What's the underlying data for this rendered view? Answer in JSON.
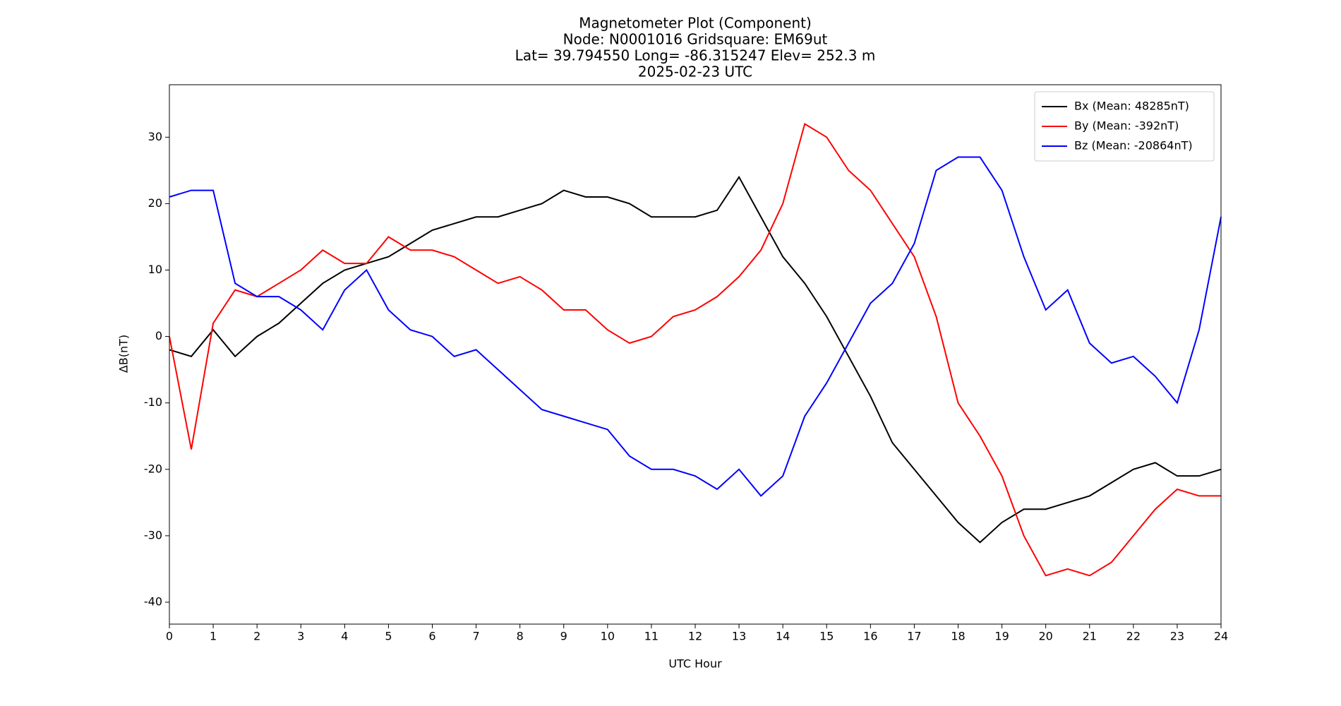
{
  "chart_data": {
    "type": "line",
    "title": [
      "Magnetometer Plot (Component)",
      "Node:  N0001016     Gridsquare:  EM69ut",
      "Lat= 39.794550    Long= -86.315247    Elev= 252.3 m",
      "2025-02-23  UTC"
    ],
    "xlabel": "UTC Hour",
    "ylabel": "ΔB(nT)",
    "x": [
      0,
      0.5,
      1,
      1.5,
      2,
      2.5,
      3,
      3.5,
      4,
      4.5,
      5,
      5.5,
      6,
      6.5,
      7,
      7.5,
      8,
      8.5,
      9,
      9.5,
      10,
      10.5,
      11,
      11.5,
      12,
      12.5,
      13,
      13.5,
      14,
      14.5,
      15,
      15.5,
      16,
      16.5,
      17,
      17.5,
      18,
      18.5,
      19,
      19.5,
      20,
      20.5,
      21,
      21.5,
      22,
      22.5,
      23,
      23.5,
      24
    ],
    "series": [
      {
        "name": "Bx (Mean: 48285nT)",
        "color": "#000000",
        "values": [
          -2,
          -3,
          1,
          -3,
          0,
          2,
          5,
          8,
          10,
          11,
          12,
          14,
          16,
          17,
          18,
          18,
          19,
          20,
          22,
          21,
          21,
          20,
          18,
          18,
          18,
          19,
          24,
          18,
          12,
          8,
          3,
          -3,
          -9,
          -16,
          -20,
          -24,
          -28,
          -31,
          -28,
          -26,
          -26,
          -25,
          -24,
          -22,
          -20,
          -19,
          -21,
          -21,
          -20
        ]
      },
      {
        "name": "By (Mean: -392nT)",
        "color": "#ff0000",
        "values": [
          0,
          -17,
          2,
          7,
          6,
          8,
          10,
          13,
          11,
          11,
          15,
          13,
          13,
          12,
          10,
          8,
          9,
          7,
          4,
          4,
          1,
          -1,
          0,
          3,
          4,
          6,
          9,
          13,
          20,
          32,
          30,
          25,
          22,
          17,
          12,
          3,
          -10,
          -15,
          -21,
          -30,
          -36,
          -35,
          -36,
          -34,
          -30,
          -26,
          -23,
          -24,
          -24
        ]
      },
      {
        "name": "Bz (Mean: -20864nT)",
        "color": "#0000ff",
        "values": [
          21,
          22,
          22,
          8,
          6,
          6,
          4,
          1,
          7,
          10,
          4,
          1,
          0,
          -3,
          -2,
          -5,
          -8,
          -11,
          -12,
          -13,
          -14,
          -18,
          -20,
          -20,
          -21,
          -23,
          -20,
          -24,
          -21,
          -12,
          -7,
          -1,
          5,
          8,
          14,
          25,
          27,
          27,
          22,
          12,
          4,
          7,
          -1,
          -4,
          -3,
          -6,
          -10,
          1,
          18
        ]
      }
    ],
    "xlim": [
      0,
      24
    ],
    "xticks": [
      0,
      1,
      2,
      3,
      4,
      5,
      6,
      7,
      8,
      9,
      10,
      11,
      12,
      13,
      14,
      15,
      16,
      17,
      18,
      19,
      20,
      21,
      22,
      23,
      24
    ],
    "ylim": [
      -43.3,
      37.9
    ],
    "yticks": [
      -40,
      -30,
      -20,
      -10,
      0,
      10,
      20,
      30
    ],
    "legend": "upper right"
  }
}
